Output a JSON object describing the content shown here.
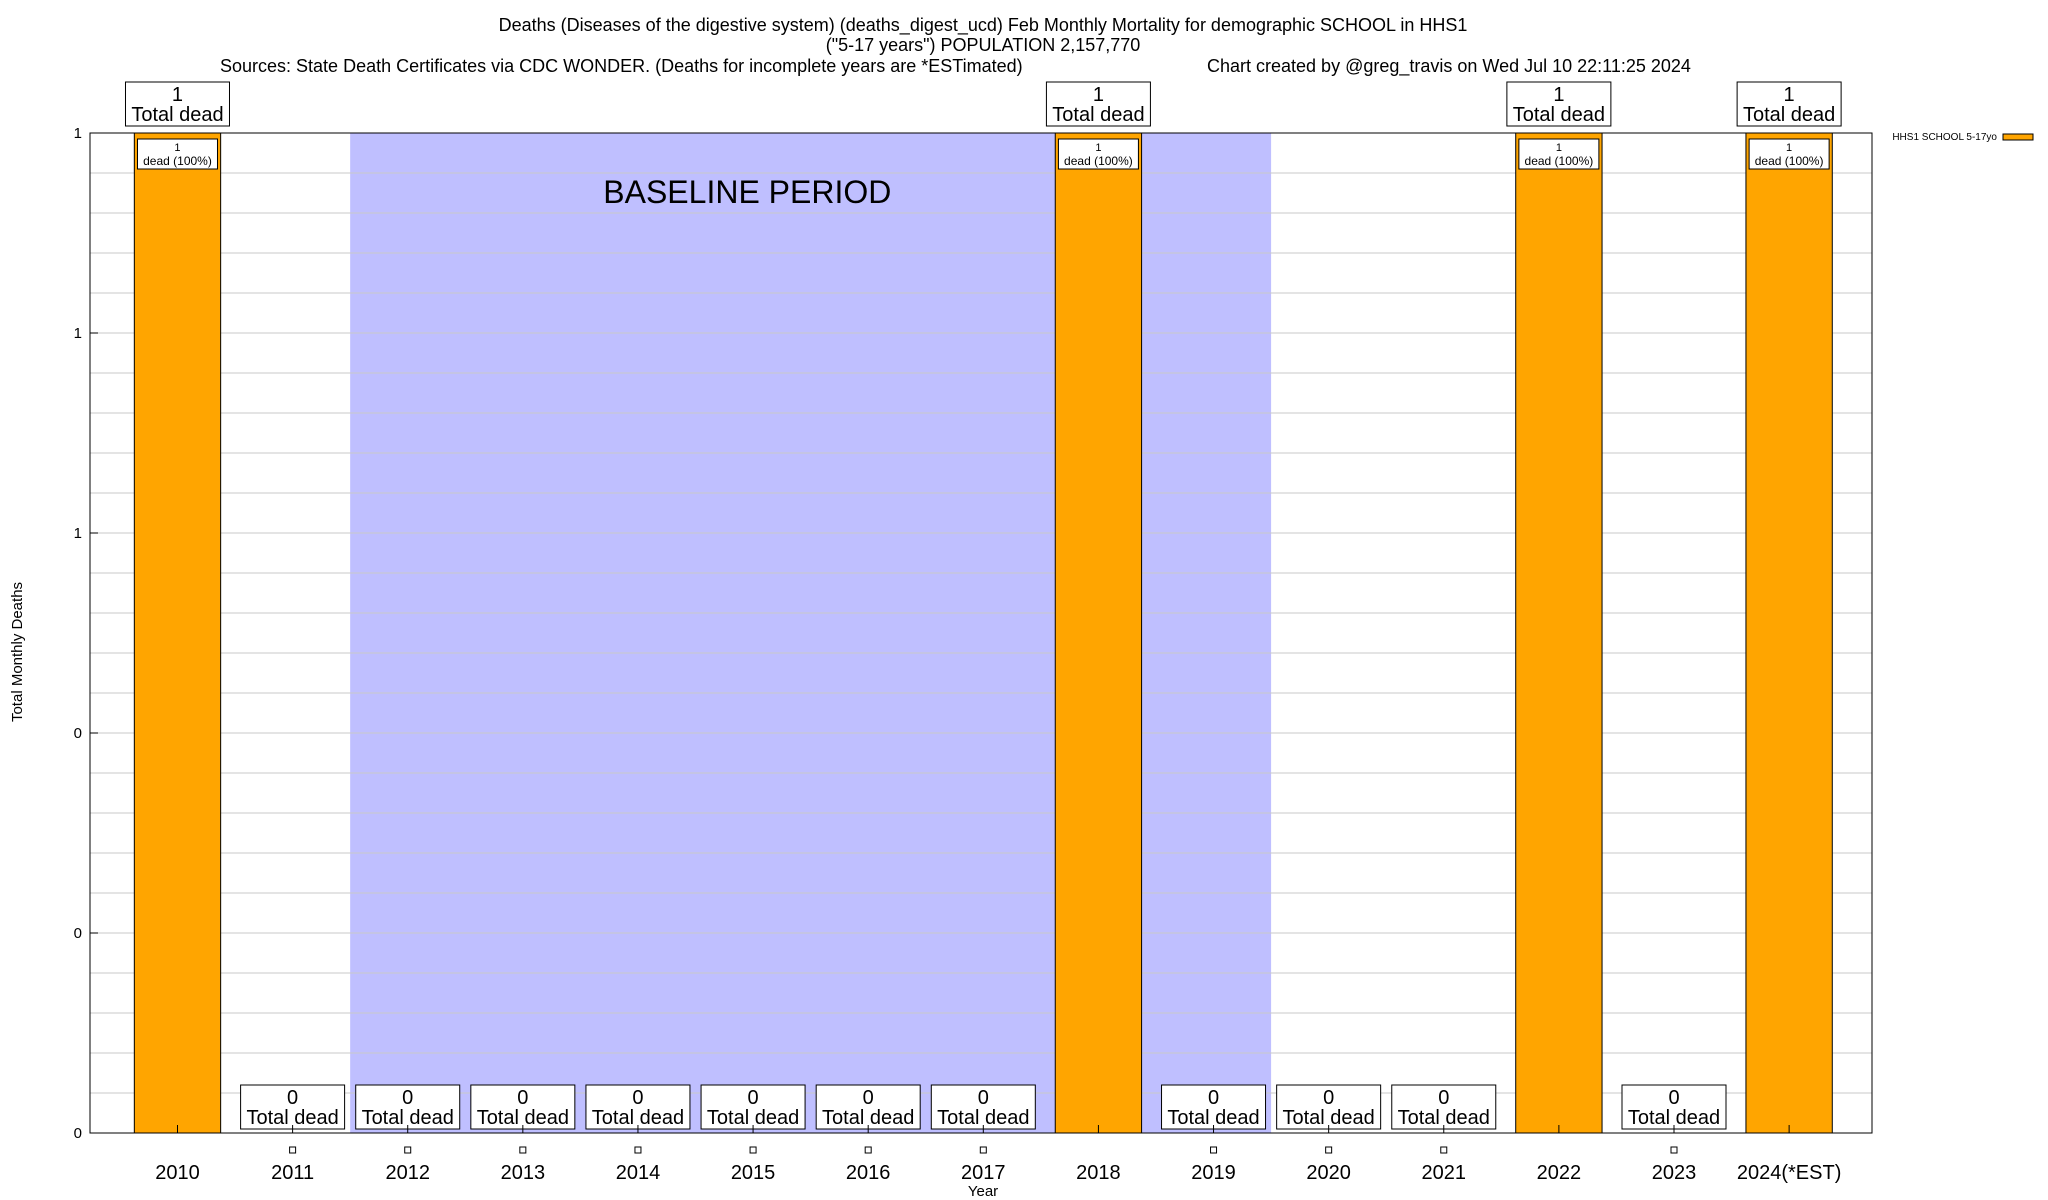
{
  "chart_data": {
    "type": "bar",
    "title_lines": [
      "Deaths (Diseases of the digestive system) (deaths_digest_ucd) Feb Monthly Mortality for demographic SCHOOL in HHS1",
      "(\"5-17 years\") POPULATION 2,157,770",
      "Sources: State Death Certificates via CDC WONDER. (Deaths for incomplete years are *ESTimated)"
    ],
    "credit": "Chart created by @greg_travis on Wed Jul 10 22:11:25 2024",
    "xlabel": "Year",
    "ylabel": "Total Monthly Deaths",
    "categories": [
      "2010",
      "2011",
      "2012",
      "2013",
      "2014",
      "2015",
      "2016",
      "2017",
      "2018",
      "2019",
      "2020",
      "2021",
      "2022",
      "2023",
      "2024(*EST)"
    ],
    "series": [
      {
        "name": "HHS1 SCHOOL 5-17yo",
        "color": "#ffa500",
        "values": [
          1,
          0,
          0,
          0,
          0,
          0,
          0,
          0,
          1,
          0,
          0,
          0,
          1,
          0,
          1
        ]
      }
    ],
    "total_label_text": "Total dead",
    "segment_label_text": "dead (100%)",
    "segment_label_count": "1",
    "ylim": [
      0,
      1
    ],
    "y_tick_labels": [
      "0",
      "0",
      "0",
      "1",
      "1",
      "1"
    ],
    "baseline_period": {
      "label": "BASELINE PERIOD",
      "start": "2012",
      "end": "2019",
      "color": "#bfbfff"
    },
    "grid": true,
    "legend_position": "top-right"
  }
}
